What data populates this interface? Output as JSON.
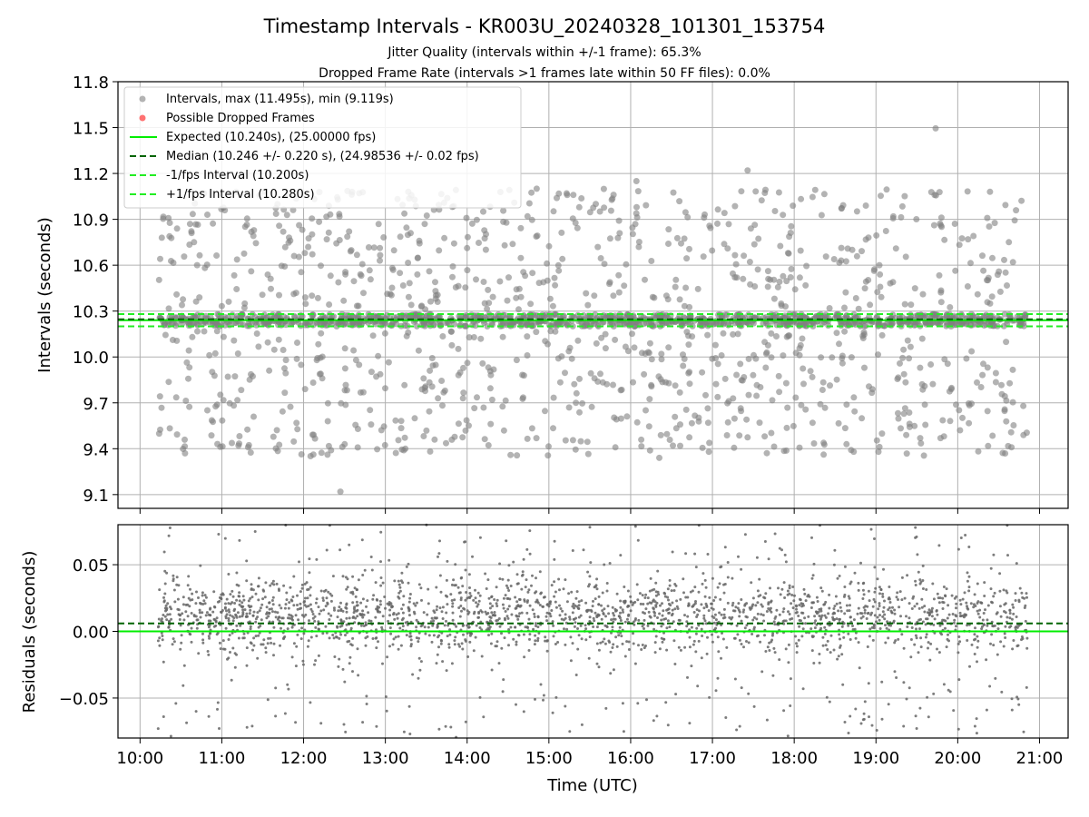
{
  "chart_data": {
    "type": "scatter",
    "title": "Timestamp Intervals - KR003U_20240328_101301_153754",
    "subtitle_lines": [
      "Jitter Quality (intervals within +/-1 frame): 65.3%",
      "Dropped Frame Rate (intervals >1 frames late within 50 FF files): 0.0%"
    ],
    "xlabel": "Time (UTC)",
    "x_tick_labels": [
      "10:00",
      "11:00",
      "12:00",
      "13:00",
      "14:00",
      "15:00",
      "16:00",
      "17:00",
      "18:00",
      "19:00",
      "20:00",
      "21:00"
    ],
    "x_range_hours": [
      9.73,
      21.35
    ],
    "data_time_range_hours": [
      10.22,
      20.85
    ],
    "grid": true,
    "colors": {
      "points": "#808080",
      "dropped": "#ff4d4d",
      "expected": "#00ee00",
      "median": "#006400",
      "interval_bounds": "#22ee22",
      "grid": "#b0b0b0",
      "legend_border": "#cccccc"
    },
    "panels": [
      {
        "name": "intervals",
        "ylabel": "Intervals (seconds)",
        "ylim": [
          9.01,
          11.8
        ],
        "y_ticks": [
          9.1,
          9.4,
          9.7,
          10.0,
          10.3,
          10.6,
          10.9,
          11.2,
          11.5,
          11.8
        ],
        "y_tick_labels": [
          "9.1",
          "9.4",
          "9.7",
          "10.0",
          "10.3",
          "10.6",
          "10.9",
          "11.2",
          "11.5",
          "11.8"
        ],
        "reference_lines": [
          {
            "label": "Expected (10.240s), (25.00000 fps)",
            "y": 10.24,
            "style": "solid",
            "color": "#00ee00"
          },
          {
            "label": "Median (10.246 +/- 0.220 s), (24.98536 +/- 0.02 fps)",
            "y": 10.246,
            "style": "dashed",
            "color": "#006400"
          },
          {
            "label": "-1/fps Interval (10.200s)",
            "y": 10.2,
            "style": "dashed",
            "color": "#22ee22"
          },
          {
            "label": "+1/fps Interval (10.280s)",
            "y": 10.28,
            "style": "dashed",
            "color": "#22ee22"
          }
        ],
        "legend": {
          "location": "upper left",
          "entries": [
            {
              "label": "Intervals, max (11.495s), min (9.119s)",
              "kind": "marker",
              "color": "#808080"
            },
            {
              "label": "Possible Dropped Frames",
              "kind": "marker",
              "color": "#ff4d4d"
            },
            {
              "label": "Expected (10.240s), (25.00000 fps)",
              "kind": "solid",
              "color": "#00ee00"
            },
            {
              "label": "Median (10.246 +/- 0.220 s), (24.98536 +/- 0.02 fps)",
              "kind": "dashed",
              "color": "#006400"
            },
            {
              "label": "-1/fps Interval (10.200s)",
              "kind": "dashed",
              "color": "#22ee22"
            },
            {
              "label": "+1/fps Interval (10.280s)",
              "kind": "dashed",
              "color": "#22ee22"
            }
          ]
        },
        "summary": {
          "max": 11.495,
          "min": 9.119,
          "core_band": [
            10.2,
            10.28
          ],
          "scatter_range": [
            9.35,
            11.1
          ]
        },
        "notable_points": [
          {
            "x": 19.73,
            "y": 11.495
          },
          {
            "x": 12.45,
            "y": 9.119
          },
          {
            "x": 17.43,
            "y": 11.22
          },
          {
            "x": 13.28,
            "y": 11.08
          },
          {
            "x": 16.07,
            "y": 11.15
          },
          {
            "x": 10.55,
            "y": 9.37
          },
          {
            "x": 16.35,
            "y": 9.34
          },
          {
            "x": 19.03,
            "y": 9.38
          }
        ]
      },
      {
        "name": "residuals",
        "ylabel": "Residuals (seconds)",
        "ylim": [
          -0.08,
          0.08
        ],
        "y_ticks": [
          -0.05,
          0.0,
          0.05
        ],
        "y_tick_labels": [
          "−0.05",
          "0.00",
          "0.05"
        ],
        "reference_lines": [
          {
            "y": 0.0,
            "style": "solid",
            "color": "#00ee00"
          },
          {
            "y": 0.006,
            "style": "dashed",
            "color": "#006400"
          }
        ],
        "summary": {
          "center": 0.012,
          "dense_spread": 0.035,
          "tail_spread": 0.08
        }
      }
    ]
  }
}
